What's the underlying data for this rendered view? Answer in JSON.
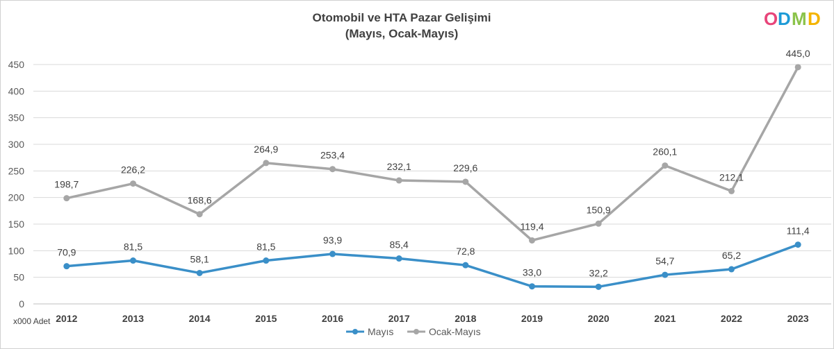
{
  "chart_data": {
    "type": "line",
    "title": "Otomobil ve HTA Pazar Gelişimi",
    "subtitle": "(Mayıs, Ocak-Mayıs)",
    "xlabel": "",
    "ylabel": "",
    "unit_label": "x000 Adet",
    "categories": [
      "2012",
      "2013",
      "2014",
      "2015",
      "2016",
      "2017",
      "2018",
      "2019",
      "2020",
      "2021",
      "2022",
      "2023"
    ],
    "y_ticks": [
      "0",
      "50",
      "100",
      "150",
      "200",
      "250",
      "300",
      "350",
      "400",
      "450"
    ],
    "ylim": [
      0,
      450
    ],
    "grid": true,
    "legend_position": "bottom",
    "series": [
      {
        "name": "Mayıs",
        "color": "#3a8fc8",
        "values": [
          70.9,
          81.5,
          58.1,
          81.5,
          93.9,
          85.4,
          72.8,
          33.0,
          32.2,
          54.7,
          65.2,
          111.4
        ],
        "labels": [
          "70,9",
          "81,5",
          "58,1",
          "81,5",
          "93,9",
          "85,4",
          "72,8",
          "33,0",
          "32,2",
          "54,7",
          "65,2",
          "111,4"
        ]
      },
      {
        "name": "Ocak-Mayıs",
        "color": "#a6a6a6",
        "values": [
          198.7,
          226.2,
          168.6,
          264.9,
          253.4,
          232.1,
          229.6,
          119.4,
          150.9,
          260.1,
          212.1,
          445.0
        ],
        "labels": [
          "198,7",
          "226,2",
          "168,6",
          "264,9",
          "253,4",
          "232,1",
          "229,6",
          "119,4",
          "150,9",
          "260,1",
          "212,1",
          "445,0"
        ]
      }
    ]
  },
  "logo": {
    "text": "ODMD",
    "letter_colors": [
      "#e8457a",
      "#1e9bd7",
      "#8bc34a",
      "#f4b400"
    ]
  }
}
